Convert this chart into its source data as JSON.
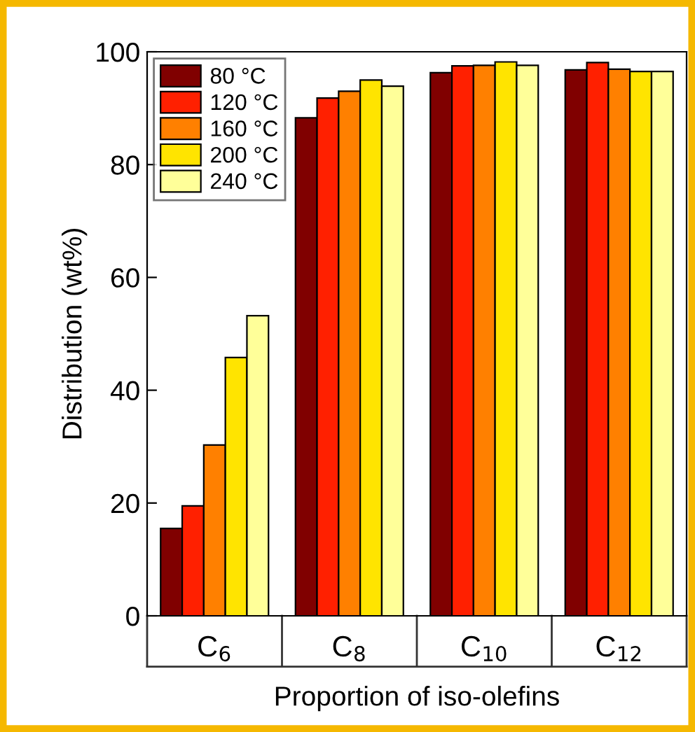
{
  "chart_data": {
    "type": "bar",
    "xlabel": "Proportion of iso-olefins",
    "ylabel": "Distribution (wt%)",
    "categories": [
      "C$_{6}$",
      "C$_{8}$",
      "C$_{10}$",
      "C$_{12}$"
    ],
    "series": [
      {
        "name": "80 °C",
        "color": "#800000",
        "values": [
          15.5,
          88.3,
          96.3,
          96.8
        ]
      },
      {
        "name": "120 °C",
        "color": "#ff2000",
        "values": [
          19.5,
          91.8,
          97.5,
          98.1
        ]
      },
      {
        "name": "160 °C",
        "color": "#ff8000",
        "values": [
          30.3,
          93.0,
          97.6,
          96.9
        ]
      },
      {
        "name": "200 °C",
        "color": "#ffe400",
        "values": [
          45.8,
          95.0,
          98.2,
          96.5
        ]
      },
      {
        "name": "240 °C",
        "color": "#ffff99",
        "values": [
          53.2,
          93.9,
          97.6,
          96.5
        ]
      }
    ],
    "ylim": [
      0,
      100
    ],
    "yticks": [
      0,
      20,
      40,
      60,
      80,
      100
    ],
    "legend": "top left",
    "grid": false
  }
}
